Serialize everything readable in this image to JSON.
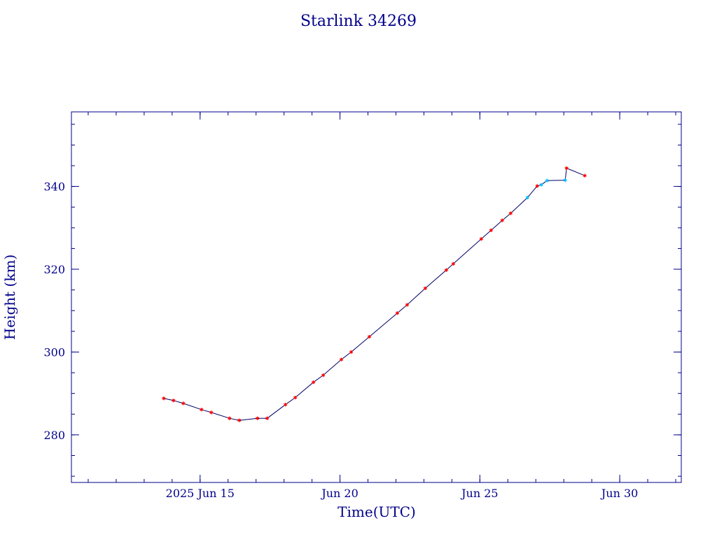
{
  "chart_data": {
    "type": "line",
    "title": "Starlink 34269",
    "xlabel": "Time(UTC)",
    "ylabel": "Height (km)",
    "x_unit": "days since 2025-06-10 00:00 UTC",
    "xlim": [
      10.4,
      32.2
    ],
    "ylim": [
      268.5,
      358
    ],
    "x_ticks": [
      {
        "x": 15,
        "label": "2025 Jun 15"
      },
      {
        "x": 20,
        "label": "Jun 20"
      },
      {
        "x": 25,
        "label": "Jun 25"
      },
      {
        "x": 30,
        "label": "Jun 30"
      }
    ],
    "y_ticks": [
      {
        "y": 280,
        "label": "280"
      },
      {
        "y": 300,
        "label": "300"
      },
      {
        "y": 320,
        "label": "320"
      },
      {
        "y": 340,
        "label": "340"
      }
    ],
    "x_minor_step": 1,
    "y_minor_step": 5,
    "grid": false,
    "colors": {
      "axis": "#00008b",
      "line": "#000066",
      "observed": "#ff0000",
      "predicted": "#00bfff"
    },
    "series": [
      {
        "name": "",
        "points": [
          {
            "x": 13.7,
            "y": 288.8,
            "kind": "observed"
          },
          {
            "x": 14.05,
            "y": 288.3,
            "kind": "observed"
          },
          {
            "x": 14.4,
            "y": 287.6,
            "kind": "observed"
          },
          {
            "x": 15.05,
            "y": 286.1,
            "kind": "observed"
          },
          {
            "x": 15.4,
            "y": 285.4,
            "kind": "observed"
          },
          {
            "x": 16.05,
            "y": 284.0,
            "kind": "observed"
          },
          {
            "x": 16.4,
            "y": 283.5,
            "kind": "observed"
          },
          {
            "x": 17.05,
            "y": 284.0,
            "kind": "observed"
          },
          {
            "x": 17.4,
            "y": 284.0,
            "kind": "observed"
          },
          {
            "x": 18.05,
            "y": 287.3,
            "kind": "observed"
          },
          {
            "x": 18.4,
            "y": 289.0,
            "kind": "observed"
          },
          {
            "x": 19.05,
            "y": 292.7,
            "kind": "observed"
          },
          {
            "x": 19.4,
            "y": 294.4,
            "kind": "observed"
          },
          {
            "x": 20.05,
            "y": 298.2,
            "kind": "observed"
          },
          {
            "x": 20.4,
            "y": 300.0,
            "kind": "observed"
          },
          {
            "x": 21.05,
            "y": 303.7,
            "kind": "observed"
          },
          {
            "x": 22.05,
            "y": 309.4,
            "kind": "observed"
          },
          {
            "x": 22.4,
            "y": 311.4,
            "kind": "observed"
          },
          {
            "x": 23.05,
            "y": 315.4,
            "kind": "observed"
          },
          {
            "x": 23.8,
            "y": 319.8,
            "kind": "observed"
          },
          {
            "x": 24.05,
            "y": 321.3,
            "kind": "observed"
          },
          {
            "x": 25.05,
            "y": 327.3,
            "kind": "observed"
          },
          {
            "x": 25.4,
            "y": 329.4,
            "kind": "observed"
          },
          {
            "x": 25.8,
            "y": 331.8,
            "kind": "observed"
          },
          {
            "x": 26.1,
            "y": 333.5,
            "kind": "observed"
          },
          {
            "x": 26.7,
            "y": 337.3,
            "kind": "predicted"
          },
          {
            "x": 27.05,
            "y": 340.1,
            "kind": "observed"
          },
          {
            "x": 27.2,
            "y": 340.4,
            "kind": "predicted"
          },
          {
            "x": 27.4,
            "y": 341.4,
            "kind": "predicted"
          },
          {
            "x": 28.05,
            "y": 341.5,
            "kind": "predicted"
          },
          {
            "x": 28.1,
            "y": 344.4,
            "kind": "observed"
          },
          {
            "x": 28.75,
            "y": 342.6,
            "kind": "observed"
          }
        ]
      }
    ]
  }
}
